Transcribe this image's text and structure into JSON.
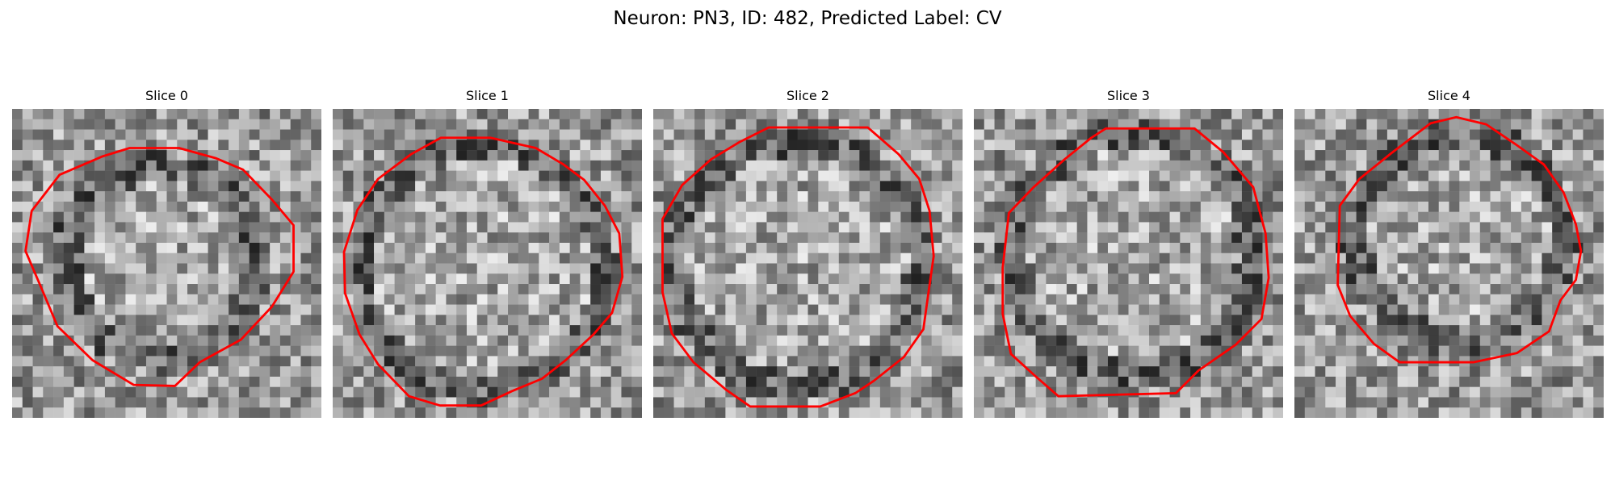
{
  "figure": {
    "title": "Neuron: PN3, ID: 482, Predicted Label: CV"
  },
  "slices": [
    {
      "label": "Slice 0"
    },
    {
      "label": "Slice 1"
    },
    {
      "label": "Slice 2"
    },
    {
      "label": "Slice 3"
    },
    {
      "label": "Slice 4"
    }
  ],
  "colors": {
    "contour": "#ff0000"
  }
}
